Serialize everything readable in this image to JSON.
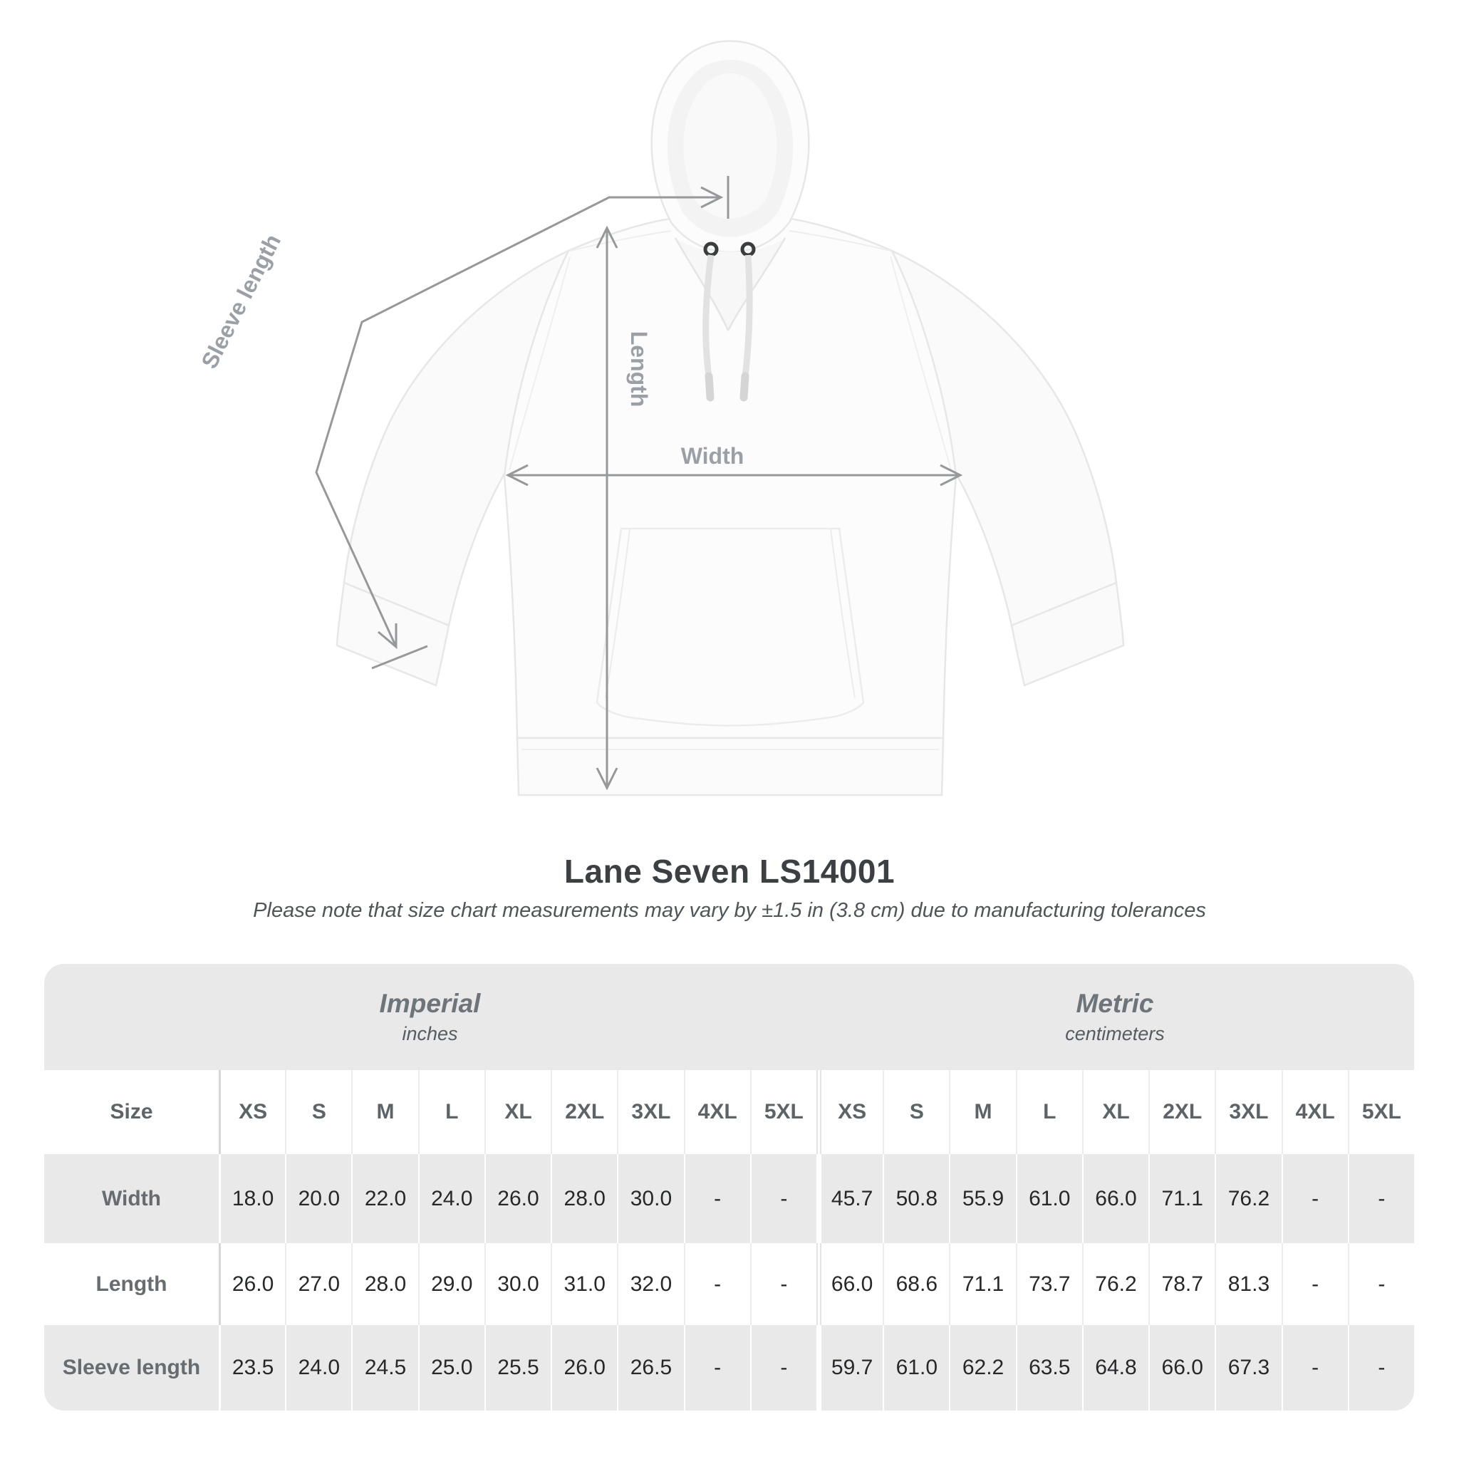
{
  "diagram": {
    "labels": {
      "sleeve": "Sleeve length",
      "length": "Length",
      "width": "Width"
    },
    "line_color": "#96989a",
    "label_color": "#9aa0a5"
  },
  "title": "Lane Seven LS14001",
  "subtitle": "Please note that size chart measurements may vary by ±1.5 in (3.8 cm) due to manufacturing tolerances",
  "table": {
    "unit_groups": [
      {
        "label": "Imperial",
        "sublabel": "inches"
      },
      {
        "label": "Metric",
        "sublabel": "centimeters"
      }
    ],
    "size_row_label": "Size",
    "sizes": [
      "XS",
      "S",
      "M",
      "L",
      "XL",
      "2XL",
      "3XL",
      "4XL",
      "5XL"
    ],
    "rows": [
      {
        "label": "Width",
        "imperial": [
          "18.0",
          "20.0",
          "22.0",
          "24.0",
          "26.0",
          "28.0",
          "30.0",
          "-",
          "-"
        ],
        "metric": [
          "45.7",
          "50.8",
          "55.9",
          "61.0",
          "66.0",
          "71.1",
          "76.2",
          "-",
          "-"
        ]
      },
      {
        "label": "Length",
        "imperial": [
          "26.0",
          "27.0",
          "28.0",
          "29.0",
          "30.0",
          "31.0",
          "32.0",
          "-",
          "-"
        ],
        "metric": [
          "66.0",
          "68.6",
          "71.1",
          "73.7",
          "76.2",
          "78.7",
          "81.3",
          "-",
          "-"
        ]
      },
      {
        "label": "Sleeve length",
        "imperial": [
          "23.5",
          "24.0",
          "24.5",
          "25.0",
          "25.5",
          "26.0",
          "26.5",
          "-",
          "-"
        ],
        "metric": [
          "59.7",
          "61.0",
          "62.2",
          "63.5",
          "64.8",
          "66.0",
          "67.3",
          "-",
          "-"
        ]
      }
    ]
  },
  "colors": {
    "row_gray": "#e9e9e9",
    "heading_gray": "#6e757a",
    "value_dark": "#26282a",
    "annotation_gray": "#96989a"
  }
}
